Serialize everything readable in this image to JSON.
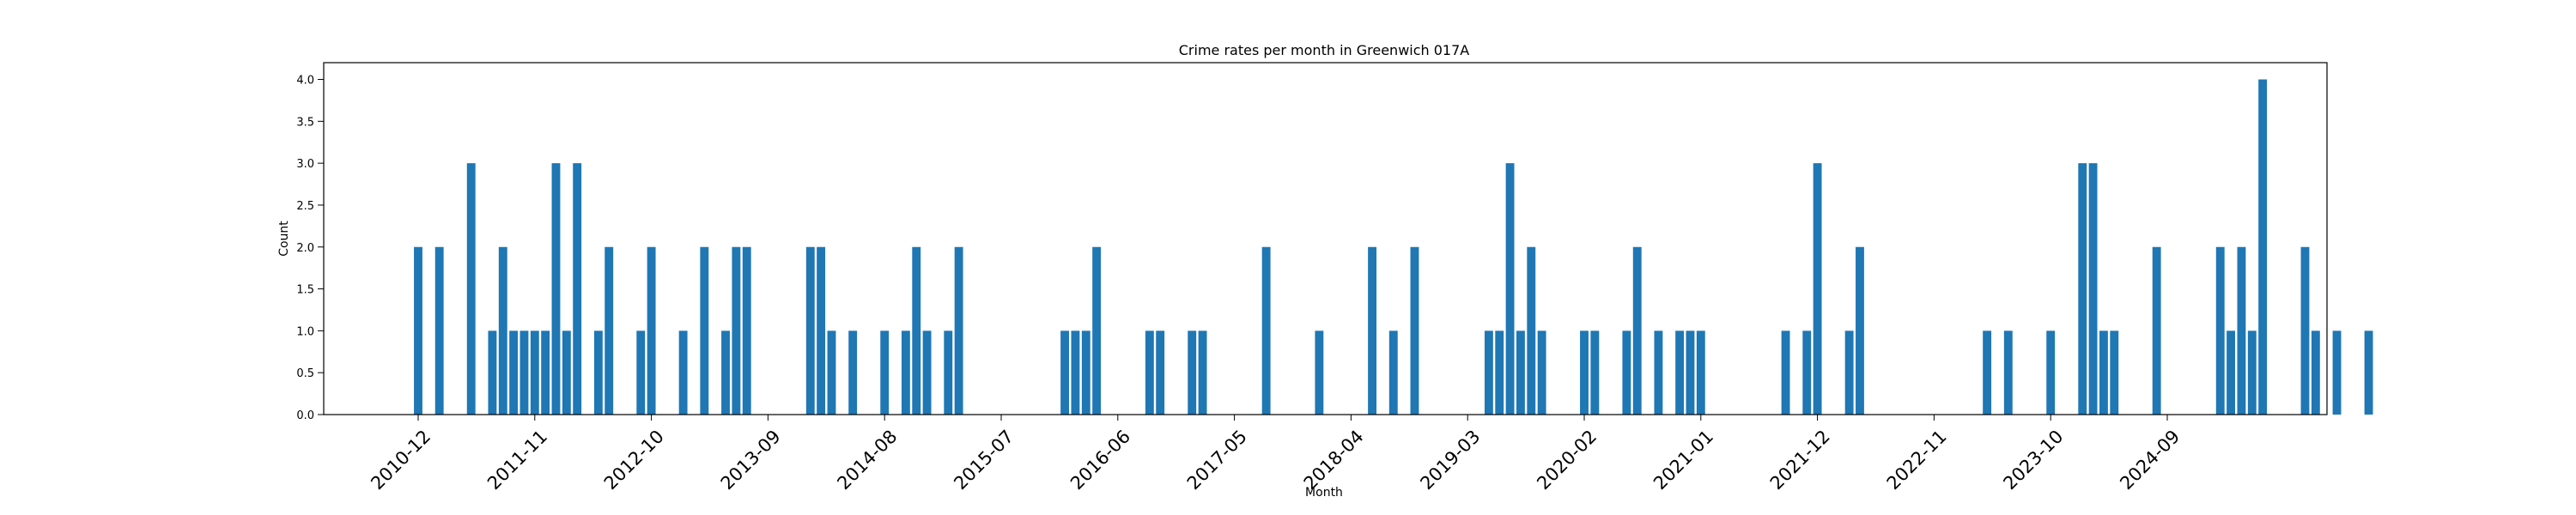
{
  "chart_data": {
    "type": "bar",
    "title": "Crime rates per month in Greenwich 017A",
    "xlabel": "Month",
    "ylabel": "Count",
    "ylim": [
      0,
      4.2
    ],
    "y_ticks": [
      0.0,
      0.5,
      1.0,
      1.5,
      2.0,
      2.5,
      3.0,
      3.5,
      4.0
    ],
    "y_tick_labels": [
      "0.0",
      "0.5",
      "1.0",
      "1.5",
      "2.0",
      "2.5",
      "3.0",
      "3.5",
      "4.0"
    ],
    "x_tick_labels": [
      "2010-12",
      "2011-11",
      "2012-10",
      "2013-09",
      "2014-08",
      "2015-07",
      "2016-06",
      "2017-05",
      "2018-04",
      "2019-03",
      "2020-02",
      "2021-01",
      "2021-12",
      "2022-11",
      "2023-10",
      "2024-09"
    ],
    "bar_color": "#1f77b4",
    "grid": false,
    "legend": "none",
    "x": [
      "2010-12",
      "2011-02",
      "2011-05",
      "2011-07",
      "2011-08",
      "2011-09",
      "2011-10",
      "2011-11",
      "2011-12",
      "2012-01",
      "2012-02",
      "2012-03",
      "2012-05",
      "2012-06",
      "2012-09",
      "2012-10",
      "2013-01",
      "2013-03",
      "2013-05",
      "2013-06",
      "2013-07",
      "2014-01",
      "2014-02",
      "2014-03",
      "2014-05",
      "2014-08",
      "2014-10",
      "2014-11",
      "2014-12",
      "2015-02",
      "2015-03",
      "2016-01",
      "2016-02",
      "2016-03",
      "2016-04",
      "2016-09",
      "2016-10",
      "2017-01",
      "2017-02",
      "2017-08",
      "2018-01",
      "2018-06",
      "2018-08",
      "2018-10",
      "2019-05",
      "2019-06",
      "2019-07",
      "2019-08",
      "2019-09",
      "2019-10",
      "2020-02",
      "2020-03",
      "2020-06",
      "2020-07",
      "2020-09",
      "2020-11",
      "2020-12",
      "2021-01",
      "2021-09",
      "2021-11",
      "2021-12",
      "2022-03",
      "2022-04",
      "2023-04",
      "2023-06",
      "2023-10",
      "2024-01",
      "2024-02",
      "2024-03",
      "2024-04",
      "2024-08",
      "2025-02",
      "2025-03",
      "2025-04",
      "2025-05",
      "2025-06",
      "2025-10",
      "2025-11",
      "2026-01",
      "2026-04"
    ],
    "values": [
      2,
      2,
      3,
      1,
      2,
      1,
      1,
      1,
      1,
      3,
      1,
      3,
      1,
      2,
      1,
      2,
      1,
      2,
      1,
      2,
      2,
      2,
      2,
      1,
      1,
      1,
      1,
      2,
      1,
      1,
      2,
      1,
      1,
      1,
      2,
      1,
      1,
      1,
      1,
      2,
      1,
      2,
      1,
      2,
      1,
      1,
      3,
      1,
      2,
      1,
      1,
      1,
      1,
      2,
      1,
      1,
      1,
      1,
      1,
      1,
      3,
      1,
      2,
      1,
      1,
      1,
      3,
      3,
      1,
      1,
      2,
      2,
      1,
      2,
      1,
      4,
      2,
      1,
      1,
      1
    ]
  }
}
